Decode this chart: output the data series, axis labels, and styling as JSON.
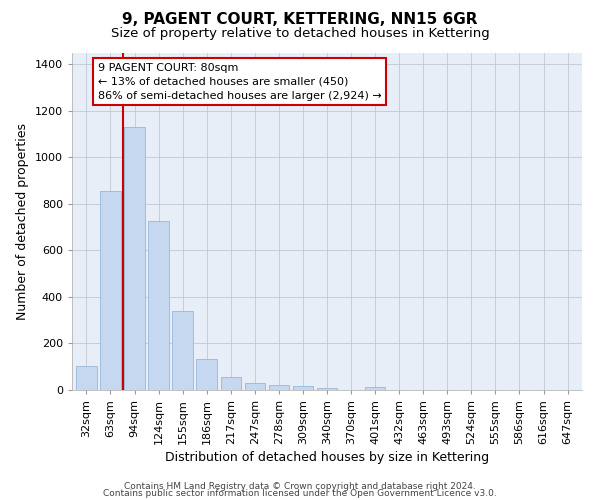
{
  "title": "9, PAGENT COURT, KETTERING, NN15 6GR",
  "subtitle": "Size of property relative to detached houses in Kettering",
  "xlabel": "Distribution of detached houses by size in Kettering",
  "ylabel": "Number of detached properties",
  "categories": [
    "32sqm",
    "63sqm",
    "94sqm",
    "124sqm",
    "155sqm",
    "186sqm",
    "217sqm",
    "247sqm",
    "278sqm",
    "309sqm",
    "340sqm",
    "370sqm",
    "401sqm",
    "432sqm",
    "463sqm",
    "493sqm",
    "524sqm",
    "555sqm",
    "586sqm",
    "616sqm",
    "647sqm"
  ],
  "values": [
    103,
    857,
    1130,
    725,
    340,
    135,
    57,
    30,
    20,
    17,
    10,
    0,
    12,
    0,
    0,
    0,
    0,
    0,
    0,
    0,
    0
  ],
  "bar_color": "#c5d8ef",
  "bar_edge_color": "#8ab0d4",
  "annotation_text": "9 PAGENT COURT: 80sqm\n← 13% of detached houses are smaller (450)\n86% of semi-detached houses are larger (2,924) →",
  "annotation_box_color": "#ffffff",
  "annotation_box_edge_color": "#cc0000",
  "property_line_color": "#cc0000",
  "ylim": [
    0,
    1450
  ],
  "yticks": [
    0,
    200,
    400,
    600,
    800,
    1000,
    1200,
    1400
  ],
  "background_color": "#e8eef8",
  "footer_line1": "Contains HM Land Registry data © Crown copyright and database right 2024.",
  "footer_line2": "Contains public sector information licensed under the Open Government Licence v3.0.",
  "title_fontsize": 11,
  "subtitle_fontsize": 9.5,
  "axis_label_fontsize": 9,
  "tick_fontsize": 8,
  "annotation_fontsize": 8,
  "footer_fontsize": 6.5
}
